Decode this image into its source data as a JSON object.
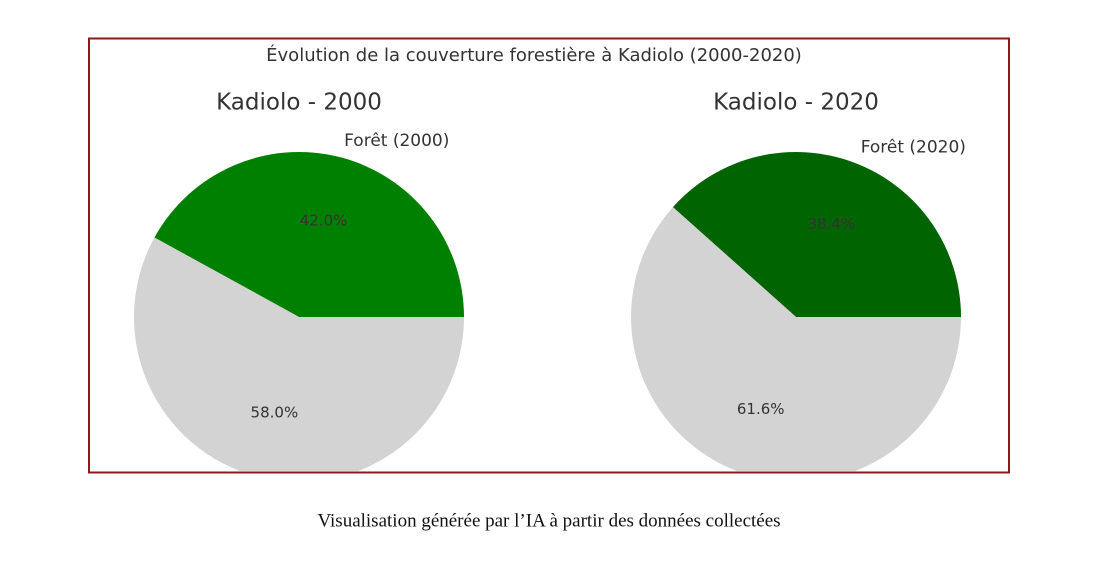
{
  "title": "Évolution de la couverture forestière à Kadiolo (2000-2020)",
  "chart_data": [
    {
      "type": "pie",
      "title": "Kadiolo - 2000",
      "categories": [
        "Forêt (2000)",
        null
      ],
      "values": [
        42.0,
        58.0
      ],
      "value_labels": [
        "42.0%",
        "58.0%"
      ],
      "colors": [
        "#008000",
        "#d3d3d3"
      ]
    },
    {
      "type": "pie",
      "title": "Kadiolo - 2020",
      "categories": [
        "Forêt (2020)",
        null
      ],
      "values": [
        38.4,
        61.6
      ],
      "value_labels": [
        "38.4%",
        "61.6%"
      ],
      "colors": [
        "#006400",
        "#d3d3d3"
      ]
    }
  ],
  "caption": "Visualisation générée par l’IA à partir des données collectées"
}
